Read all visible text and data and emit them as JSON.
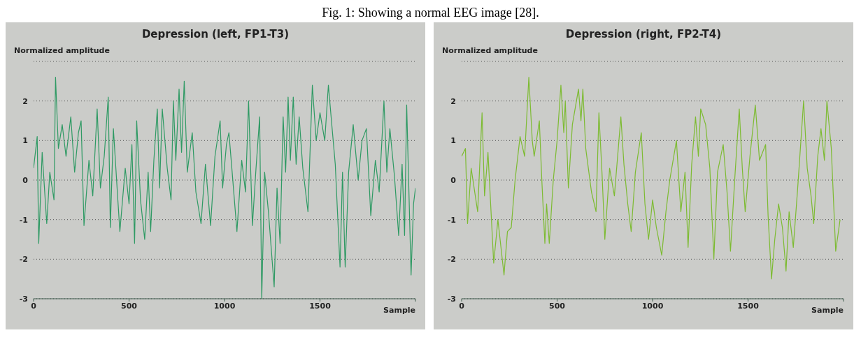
{
  "chart_data": [
    {
      "type": "line",
      "title": "Depression (left, FP1-T3)",
      "xlabel": "Sample",
      "ylabel": "Normalized amplitude",
      "annotations": [
        "Fig. 1: Showing a normal EEG image [28]."
      ],
      "xlim": [
        0,
        2000
      ],
      "xticks": [
        0,
        500,
        1000,
        1500,
        {
          "value": 2000,
          "label": null
        }
      ],
      "ylim": [
        -3,
        3
      ],
      "yticks": [
        -3,
        -2,
        -1,
        0,
        1,
        2,
        {
          "value": 3,
          "label": null
        }
      ],
      "grid": "y",
      "marker": "none",
      "line_style": "solid",
      "x": [
        0,
        19,
        27,
        45,
        69,
        85,
        107,
        115,
        130,
        150,
        170,
        195,
        215,
        235,
        249,
        264,
        290,
        310,
        333,
        350,
        370,
        391,
        402,
        418,
        440,
        452,
        480,
        500,
        515,
        529,
        540,
        560,
        582,
        600,
        613,
        630,
        648,
        660,
        674,
        700,
        720,
        732,
        745,
        762,
        775,
        789,
        805,
        831,
        850,
        877,
        900,
        927,
        950,
        977,
        990,
        1010,
        1023,
        1040,
        1065,
        1090,
        1110,
        1126,
        1146,
        1165,
        1184,
        1195,
        1210,
        1230,
        1260,
        1275,
        1291,
        1307,
        1320,
        1333,
        1345,
        1360,
        1375,
        1391,
        1410,
        1437,
        1460,
        1480,
        1500,
        1525,
        1544,
        1560,
        1580,
        1605,
        1618,
        1632,
        1650,
        1674,
        1700,
        1720,
        1743,
        1766,
        1790,
        1810,
        1835,
        1850,
        1866,
        1890,
        1912,
        1930,
        1943,
        1954,
        1977,
        1990,
        2000
      ],
      "series": [
        {
          "color": "#2f9a64",
          "values": [
            0.3,
            1.1,
            -1.6,
            0.7,
            -1.1,
            0.2,
            -0.5,
            2.6,
            0.8,
            1.4,
            0.6,
            1.6,
            0.2,
            1.2,
            1.5,
            -1.15,
            0.5,
            -0.4,
            1.8,
            -0.2,
            0.6,
            2.1,
            -1.2,
            1.3,
            -0.4,
            -1.3,
            0.3,
            -0.6,
            0.9,
            -1.6,
            1.5,
            -0.5,
            -1.5,
            0.2,
            -1.3,
            0.5,
            1.8,
            -0.2,
            1.8,
            0.3,
            -0.5,
            2.0,
            0.5,
            2.3,
            0.7,
            2.5,
            0.2,
            1.2,
            -0.3,
            -1.1,
            0.4,
            -1.15,
            0.6,
            1.5,
            -0.2,
            0.9,
            1.2,
            0.2,
            -1.3,
            0.5,
            -0.3,
            2.0,
            -1.15,
            0.3,
            1.6,
            -3.0,
            0.2,
            -0.8,
            -2.7,
            -0.2,
            -1.6,
            1.6,
            0.2,
            2.1,
            0.5,
            2.1,
            0.4,
            1.6,
            0.3,
            -0.8,
            2.4,
            1.0,
            1.7,
            1.0,
            2.4,
            1.5,
            0.4,
            -2.2,
            0.2,
            -2.2,
            0.2,
            1.4,
            0.0,
            1.0,
            1.3,
            -0.9,
            0.5,
            -0.3,
            2.0,
            0.2,
            1.3,
            0.1,
            -1.4,
            0.4,
            -1.4,
            1.9,
            -2.4,
            -0.6,
            -0.2
          ]
        }
      ]
    },
    {
      "type": "line",
      "title": "Depression (right, FP2-T4)",
      "xlabel": "Sample",
      "ylabel": "Normalized amplitude",
      "xlim": [
        0,
        2000
      ],
      "xticks": [
        0,
        500,
        1000,
        1500,
        {
          "value": 2000,
          "label": null
        }
      ],
      "ylim": [
        -3,
        3
      ],
      "yticks": [
        -3,
        -2,
        -1,
        0,
        1,
        2,
        {
          "value": 3,
          "label": null
        }
      ],
      "grid": "y",
      "marker": "none",
      "line_style": "solid",
      "x": [
        0,
        20,
        31,
        50,
        84,
        107,
        120,
        138,
        168,
        190,
        222,
        240,
        260,
        280,
        306,
        330,
        352,
        370,
        380,
        407,
        420,
        436,
        445,
        459,
        480,
        500,
        520,
        535,
        543,
        559,
        580,
        612,
        625,
        635,
        650,
        680,
        704,
        719,
        735,
        750,
        775,
        800,
        834,
        850,
        870,
        888,
        910,
        941,
        960,
        979,
        1000,
        1020,
        1048,
        1070,
        1090,
        1125,
        1148,
        1170,
        1186,
        1205,
        1225,
        1240,
        1252,
        1278,
        1300,
        1321,
        1340,
        1370,
        1390,
        1408,
        1430,
        1454,
        1470,
        1485,
        1510,
        1538,
        1560,
        1592,
        1605,
        1623,
        1640,
        1660,
        1680,
        1699,
        1715,
        1737,
        1760,
        1791,
        1810,
        1830,
        1844,
        1865,
        1882,
        1900,
        1913,
        1936,
        1959,
        1982
      ],
      "series": [
        {
          "color": "#7dbb32",
          "values": [
            0.6,
            0.8,
            -1.1,
            0.3,
            -0.8,
            1.7,
            -0.4,
            0.7,
            -2.1,
            -1.0,
            -2.4,
            -1.3,
            -1.2,
            0.0,
            1.1,
            0.6,
            2.6,
            1.0,
            0.6,
            1.5,
            0.0,
            -1.6,
            -0.6,
            -1.6,
            0.0,
            1.0,
            2.4,
            1.2,
            2.0,
            -0.2,
            1.4,
            2.3,
            1.5,
            2.3,
            0.8,
            -0.3,
            -0.8,
            1.7,
            0.2,
            -1.5,
            0.3,
            -0.4,
            1.6,
            0.4,
            -0.6,
            -1.3,
            0.2,
            1.2,
            -0.6,
            -1.5,
            -0.5,
            -1.2,
            -1.9,
            -0.8,
            0.0,
            1.0,
            -0.8,
            0.2,
            -1.7,
            0.4,
            1.6,
            0.6,
            1.8,
            1.4,
            0.3,
            -2.0,
            0.2,
            0.9,
            -0.3,
            -1.8,
            0.0,
            1.8,
            0.3,
            -0.8,
            0.6,
            1.9,
            0.5,
            0.9,
            -0.9,
            -2.5,
            -1.5,
            -0.6,
            -1.2,
            -2.3,
            -0.8,
            -1.7,
            -0.2,
            2.0,
            0.3,
            -0.4,
            -1.1,
            0.6,
            1.3,
            0.5,
            2.0,
            0.8,
            -1.8,
            -1.0
          ]
        }
      ]
    }
  ]
}
